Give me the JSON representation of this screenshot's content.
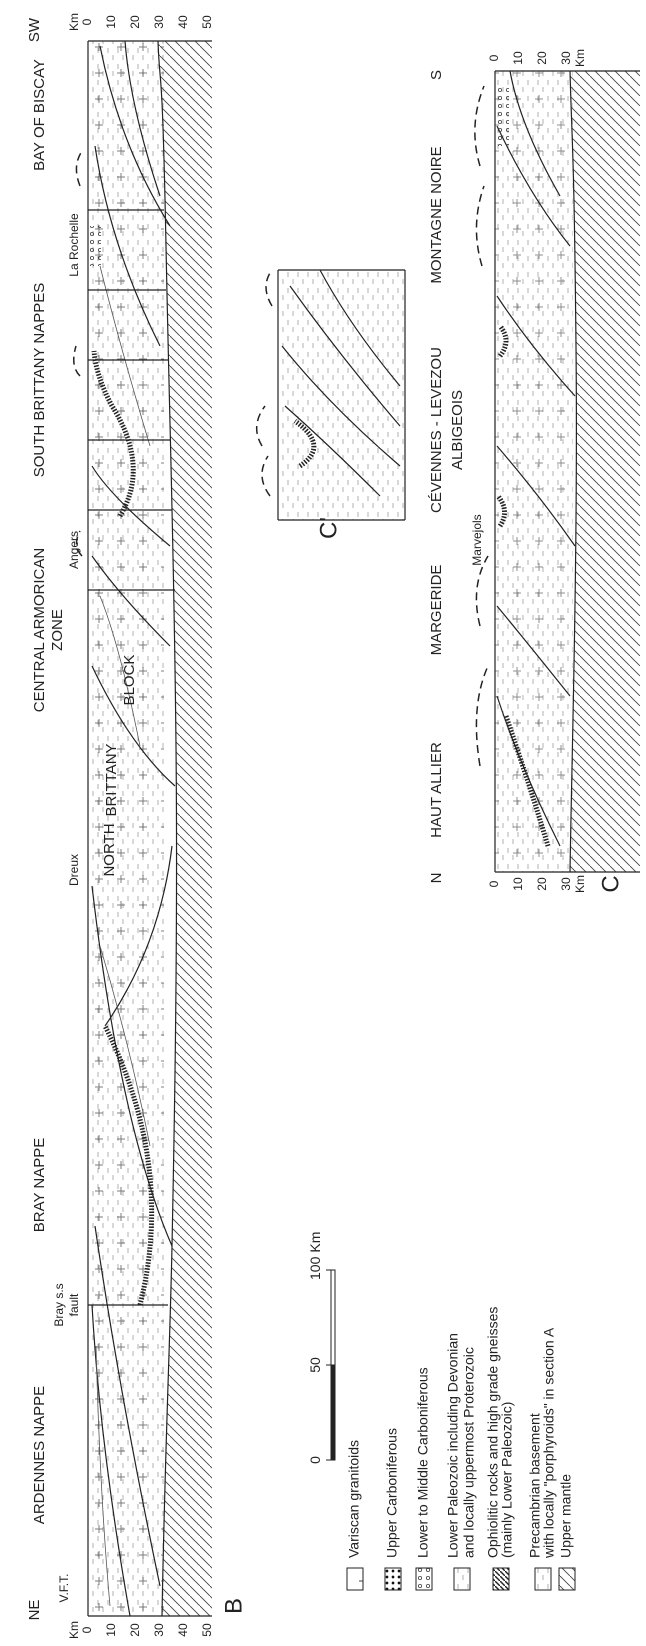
{
  "section_b": {
    "label": "B",
    "end_left": "NE",
    "end_right": "SW",
    "depth_unit": "Km",
    "depth_ticks": [
      0,
      10,
      20,
      30,
      40,
      50
    ],
    "units": [
      [
        "ARDENNES NAPPE"
      ],
      [
        "BRAY NAPPE"
      ],
      [
        "CENTRAL ARMORICAN",
        "ZONE"
      ],
      [
        "SOUTH BRITTANY NAPPES"
      ],
      [
        "BAY OF BISCAY"
      ],
      [
        "NORTH"
      ],
      [
        "BRITTANY"
      ],
      [
        "BLOCK"
      ]
    ],
    "places": [
      "V.F.T.",
      "Dreux",
      "Angers",
      "La Rochelle"
    ],
    "fault": [
      "Bray s.s",
      "fault"
    ]
  },
  "section_c": {
    "label": "C",
    "end_left": "N",
    "end_right": "S",
    "depth_unit": "Km",
    "depth_ticks": [
      0,
      10,
      20,
      30
    ],
    "units": [
      [
        "HAUT ALLIER"
      ],
      [
        "MARGERIDE"
      ],
      [
        "CÉVENNES - LEVEZOU",
        "ALBIGEOIS"
      ],
      [
        "MONTAGNE NOIRE"
      ]
    ],
    "places": [
      "Marvejols"
    ]
  },
  "section_c_prime": {
    "label": "C'"
  },
  "scale_bar": {
    "ticks": [
      0,
      50,
      100
    ],
    "unit": "Km"
  },
  "legend": [
    [
      "Variscan granitoids"
    ],
    [
      "Upper Carboniferous"
    ],
    [
      "Lower to Middle Carboniferous"
    ],
    [
      "Lower Paleozoic including Devonian",
      "and locally uppermost Proterozoic"
    ],
    [
      "Ophiolitic rocks and high grade gneisses",
      "(mainly Lower Paleozoic)"
    ],
    [
      "Precambrian basement",
      "with locally \"porphyroids\" in section A"
    ],
    [
      "Upper mantle"
    ]
  ]
}
